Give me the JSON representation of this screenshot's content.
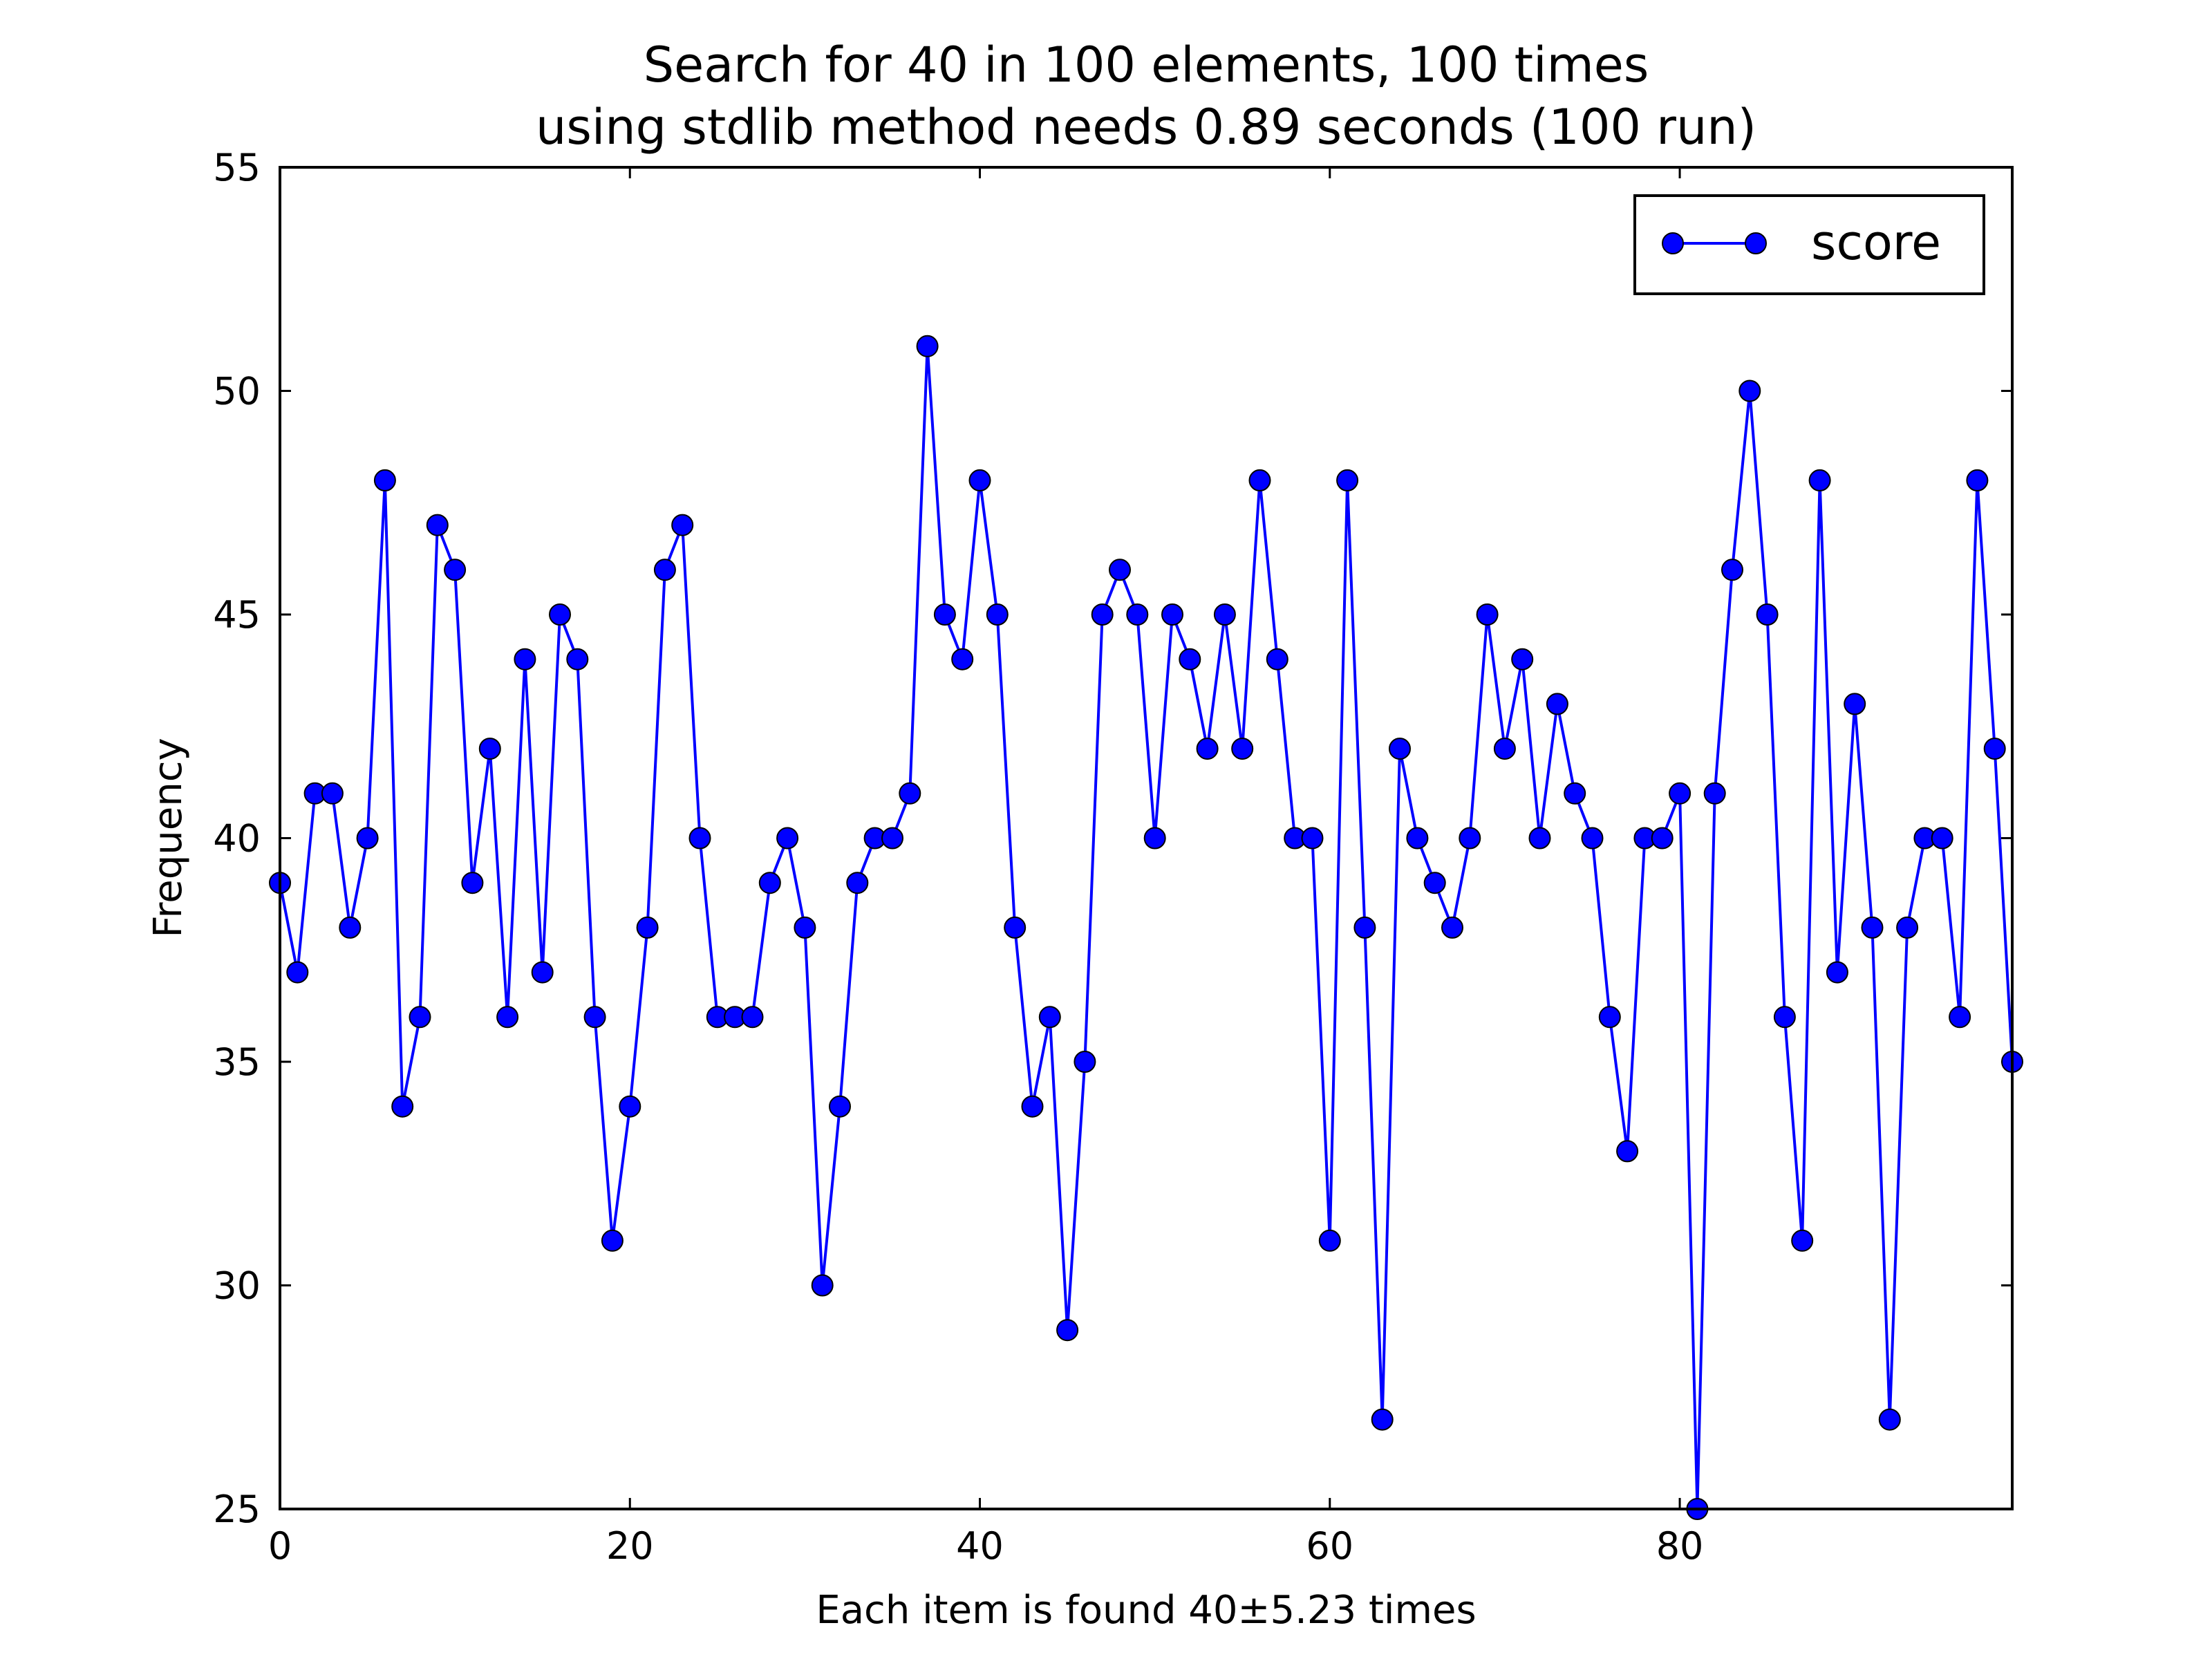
{
  "chart_data": {
    "type": "line",
    "title": "Search for 40 in 100 elements, 100 times",
    "subtitle": "using stdlib method needs 0.89 seconds (100 run)",
    "xlabel": "Each item is found 40±5.23 times",
    "ylabel": "Frequency",
    "xlim": [
      0,
      99
    ],
    "ylim": [
      25,
      55
    ],
    "xticks": [
      0,
      20,
      40,
      60,
      80
    ],
    "yticks": [
      25,
      30,
      35,
      40,
      45,
      50,
      55
    ],
    "grid": false,
    "legend": "top-right",
    "line_color": "#0000ff",
    "marker_edge_color": "#000000",
    "series": [
      {
        "name": "score",
        "x": [
          0,
          1,
          2,
          3,
          4,
          5,
          6,
          7,
          8,
          9,
          10,
          11,
          12,
          13,
          14,
          15,
          16,
          17,
          18,
          19,
          20,
          21,
          22,
          23,
          24,
          25,
          26,
          27,
          28,
          29,
          30,
          31,
          32,
          33,
          34,
          35,
          36,
          37,
          38,
          39,
          40,
          41,
          42,
          43,
          44,
          45,
          46,
          47,
          48,
          49,
          50,
          51,
          52,
          53,
          54,
          55,
          56,
          57,
          58,
          59,
          60,
          61,
          62,
          63,
          64,
          65,
          66,
          67,
          68,
          69,
          70,
          71,
          72,
          73,
          74,
          75,
          76,
          77,
          78,
          79,
          80,
          81,
          82,
          83,
          84,
          85,
          86,
          87,
          88,
          89,
          90,
          91,
          92,
          93,
          94,
          95,
          96,
          97,
          98,
          99
        ],
        "values": [
          39,
          37,
          41,
          41,
          38,
          40,
          48,
          34,
          36,
          47,
          46,
          39,
          42,
          36,
          44,
          37,
          45,
          44,
          36,
          31,
          34,
          38,
          46,
          47,
          40,
          36,
          36,
          36,
          39,
          40,
          38,
          30,
          34,
          39,
          40,
          40,
          41,
          51,
          45,
          44,
          48,
          45,
          38,
          34,
          36,
          29,
          35,
          45,
          46,
          45,
          40,
          45,
          44,
          42,
          45,
          42,
          48,
          44,
          40,
          40,
          31,
          48,
          38,
          27,
          42,
          40,
          39,
          38,
          40,
          45,
          42,
          44,
          40,
          43,
          41,
          40,
          36,
          33,
          40,
          40,
          41,
          25,
          41,
          46,
          50,
          45,
          36,
          31,
          48,
          37,
          43,
          38,
          27,
          38,
          40,
          40,
          36,
          48,
          42,
          35
        ]
      }
    ]
  }
}
